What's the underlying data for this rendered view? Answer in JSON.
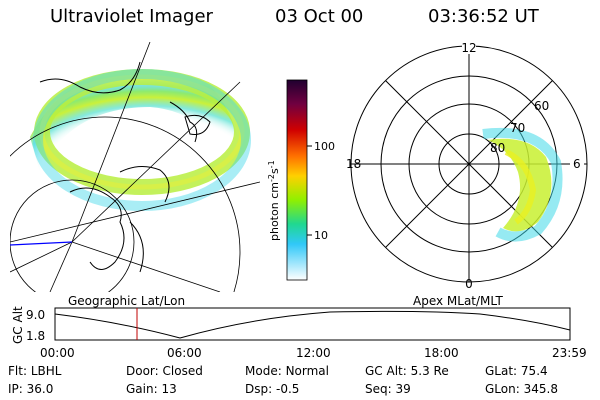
{
  "header": {
    "title": "Ultraviolet Imager",
    "date": "03 Oct 00",
    "time": "03:36:52 UT"
  },
  "colorbar": {
    "unit_label": "photon cm",
    "unit_sup1": "-2",
    "unit_s": "s",
    "unit_sup2": "-1",
    "ticks": [
      "100",
      "10"
    ]
  },
  "geo_panel": {
    "caption": "Geographic Lat/Lon"
  },
  "polar_panel": {
    "caption": "Apex MLat/MLT",
    "mlt_labels": {
      "top": "12",
      "left": "18",
      "right": "6",
      "bottom": "0"
    },
    "lat_labels": [
      "60",
      "70",
      "80"
    ]
  },
  "altitude_plot": {
    "axis_label": "GC Alt",
    "y_ticks": [
      "9.0",
      "1.8"
    ],
    "x_ticks": [
      "00:00",
      "06:00",
      "12:00",
      "18:00",
      "23:59"
    ],
    "marker_time": "03:36:52"
  },
  "info": {
    "row1": [
      {
        "label": "Flt:",
        "value": "LBHL"
      },
      {
        "label": "Door:",
        "value": "Closed"
      },
      {
        "label": "Mode:",
        "value": "Normal"
      },
      {
        "label": "GC Alt:",
        "value": "5.3 Re"
      },
      {
        "label": "GLat:",
        "value": "75.4"
      }
    ],
    "row2": [
      {
        "label": "IP:",
        "value": "36.0"
      },
      {
        "label": "Gain:",
        "value": "13"
      },
      {
        "label": "Dsp:",
        "value": "-0.5"
      },
      {
        "label": "Seq:",
        "value": "39"
      },
      {
        "label": "GLon:",
        "value": "345.8"
      }
    ]
  },
  "colors": {
    "bar_gradient": [
      "#2a0030",
      "#c00000",
      "#ff8000",
      "#ffd000",
      "#a0f000",
      "#20d890",
      "#30c8ff",
      "#ffffff"
    ],
    "marker": "#c00000",
    "blue_line": "#0000ff"
  }
}
